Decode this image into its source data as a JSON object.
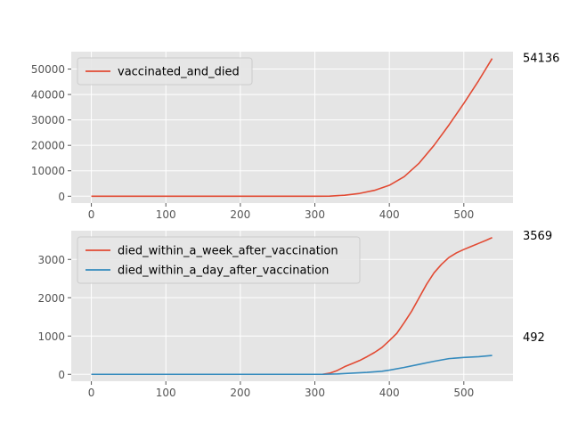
{
  "chart_data": [
    {
      "type": "line",
      "xlim": [
        -27,
        566
      ],
      "ylim": [
        -2700,
        56840
      ],
      "xticks": [
        0,
        100,
        200,
        300,
        400,
        500
      ],
      "yticks": [
        0,
        10000,
        20000,
        30000,
        40000,
        50000
      ],
      "xtick_labels": [
        "0",
        "100",
        "200",
        "300",
        "400",
        "500"
      ],
      "ytick_labels": [
        "0",
        "10000",
        "20000",
        "30000",
        "40000",
        "50000"
      ],
      "grid": true,
      "legend_position": "top-left",
      "end_annotation": "54136",
      "series": [
        {
          "name": "vaccinated_and_died",
          "color": "#E24A33",
          "x": [
            0,
            100,
            200,
            300,
            320,
            340,
            360,
            380,
            400,
            420,
            440,
            460,
            480,
            500,
            520,
            538
          ],
          "y": [
            0,
            0,
            0,
            0,
            50,
            400,
            1100,
            2300,
            4300,
            7700,
            13000,
            20000,
            28000,
            36500,
            45500,
            54136
          ]
        }
      ]
    },
    {
      "type": "line",
      "xlim": [
        -27,
        566
      ],
      "ylim": [
        -180,
        3750
      ],
      "xticks": [
        0,
        100,
        200,
        300,
        400,
        500
      ],
      "yticks": [
        0,
        1000,
        2000,
        3000
      ],
      "xtick_labels": [
        "0",
        "100",
        "200",
        "300",
        "400",
        "500"
      ],
      "ytick_labels": [
        "0",
        "1000",
        "2000",
        "3000"
      ],
      "grid": true,
      "legend_position": "top-left",
      "series": [
        {
          "name": "died_within_a_week_after_vaccination",
          "color": "#E24A33",
          "end_annotation": "3569",
          "x": [
            0,
            100,
            200,
            310,
            320,
            330,
            340,
            350,
            360,
            370,
            380,
            390,
            400,
            410,
            420,
            430,
            440,
            450,
            460,
            470,
            480,
            490,
            500,
            510,
            520,
            530,
            538
          ],
          "y": [
            0,
            0,
            0,
            0,
            30,
            100,
            200,
            280,
            360,
            460,
            570,
            700,
            880,
            1070,
            1350,
            1650,
            2000,
            2350,
            2650,
            2870,
            3050,
            3170,
            3260,
            3340,
            3420,
            3500,
            3569
          ]
        },
        {
          "name": "died_within_a_day_after_vaccination",
          "color": "#348ABD",
          "end_annotation": "492",
          "x": [
            0,
            100,
            200,
            310,
            330,
            350,
            370,
            390,
            400,
            420,
            440,
            460,
            480,
            500,
            520,
            538
          ],
          "y": [
            0,
            0,
            0,
            0,
            10,
            30,
            50,
            80,
            110,
            180,
            260,
            340,
            410,
            440,
            460,
            492
          ]
        }
      ]
    }
  ]
}
